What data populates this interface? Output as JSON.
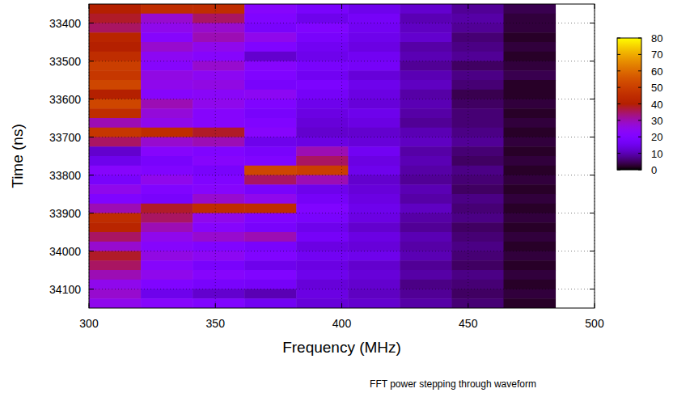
{
  "chart_data": {
    "type": "heatmap",
    "title": "FFT power stepping through waveform",
    "x_label": "Frequency (MHz)",
    "y_label": "Time (ns)",
    "xlim": [
      300,
      500
    ],
    "xticks": [
      300,
      350,
      400,
      450,
      500
    ],
    "ylim": [
      33350,
      34150
    ],
    "yticks": [
      33400,
      33500,
      33600,
      33700,
      33800,
      33900,
      34000,
      34100
    ],
    "grid": true,
    "x_edges": [
      300,
      320.5,
      341,
      361.5,
      382,
      402.5,
      423,
      443.5,
      464,
      484.5
    ],
    "y_edges": [
      33350,
      33375,
      33400,
      33425,
      33450,
      33475,
      33500,
      33525,
      33550,
      33575,
      33600,
      33625,
      33650,
      33675,
      33700,
      33725,
      33750,
      33775,
      33800,
      33825,
      33850,
      33875,
      33900,
      33925,
      33950,
      33975,
      34000,
      34025,
      34050,
      34075,
      34100,
      34125,
      34150
    ],
    "cells": [
      [
        40,
        45,
        45,
        22,
        18,
        15,
        12,
        8,
        4
      ],
      [
        38,
        28,
        35,
        20,
        15,
        17,
        10,
        9,
        3
      ],
      [
        35,
        25,
        28,
        18,
        20,
        16,
        11,
        8,
        3
      ],
      [
        42,
        22,
        30,
        25,
        18,
        15,
        12,
        6,
        2
      ],
      [
        40,
        28,
        25,
        20,
        16,
        14,
        9,
        7,
        3
      ],
      [
        45,
        24,
        22,
        12,
        15,
        16,
        10,
        8,
        2
      ],
      [
        50,
        22,
        28,
        22,
        18,
        17,
        8,
        5,
        3
      ],
      [
        48,
        26,
        24,
        20,
        16,
        13,
        10,
        7,
        4
      ],
      [
        52,
        25,
        26,
        18,
        19,
        15,
        11,
        6,
        2
      ],
      [
        40,
        22,
        23,
        24,
        17,
        14,
        9,
        4,
        2
      ],
      [
        52,
        30,
        25,
        20,
        15,
        13,
        10,
        5,
        3
      ],
      [
        45,
        27,
        22,
        18,
        14,
        15,
        9,
        6,
        2
      ],
      [
        30,
        25,
        22,
        20,
        13,
        14,
        8,
        6,
        3
      ],
      [
        48,
        45,
        38,
        22,
        12,
        12,
        10,
        7,
        2
      ],
      [
        35,
        28,
        30,
        15,
        14,
        13,
        11,
        8,
        3
      ],
      [
        12,
        22,
        20,
        18,
        30,
        16,
        9,
        6,
        2
      ],
      [
        15,
        18,
        22,
        20,
        35,
        14,
        10,
        5,
        3
      ],
      [
        22,
        20,
        18,
        52,
        50,
        15,
        9,
        7,
        2
      ],
      [
        18,
        25,
        20,
        35,
        30,
        12,
        8,
        6,
        3
      ],
      [
        25,
        20,
        22,
        18,
        15,
        13,
        10,
        5,
        2
      ],
      [
        20,
        18,
        28,
        25,
        17,
        14,
        9,
        7,
        3
      ],
      [
        30,
        38,
        45,
        45,
        20,
        15,
        11,
        6,
        2
      ],
      [
        45,
        35,
        25,
        20,
        18,
        14,
        9,
        7,
        3
      ],
      [
        42,
        30,
        22,
        18,
        15,
        12,
        8,
        5,
        2
      ],
      [
        35,
        25,
        28,
        30,
        17,
        14,
        10,
        6,
        3
      ],
      [
        28,
        22,
        20,
        18,
        14,
        13,
        9,
        7,
        2
      ],
      [
        38,
        26,
        24,
        20,
        16,
        15,
        10,
        6,
        3
      ],
      [
        35,
        22,
        18,
        15,
        14,
        12,
        8,
        5,
        2
      ],
      [
        30,
        25,
        22,
        20,
        15,
        13,
        9,
        7,
        3
      ],
      [
        25,
        20,
        18,
        17,
        13,
        12,
        7,
        6,
        2
      ],
      [
        28,
        15,
        12,
        10,
        14,
        11,
        8,
        5,
        3
      ],
      [
        25,
        22,
        20,
        16,
        13,
        12,
        9,
        6,
        2
      ]
    ],
    "colorbar": {
      "range": [
        0,
        80
      ],
      "ticks": [
        0,
        10,
        20,
        30,
        40,
        50,
        60,
        70,
        80
      ]
    }
  }
}
